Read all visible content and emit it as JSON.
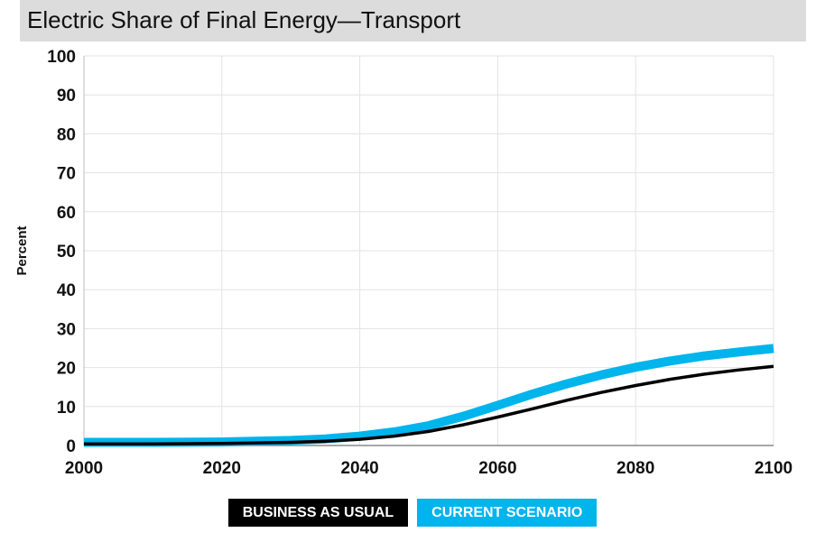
{
  "title": "Electric Share of Final Energy—Transport",
  "chart_data": {
    "type": "line",
    "ylabel": "Percent",
    "xlim": [
      2000,
      2100
    ],
    "ylim": [
      0,
      100
    ],
    "x_ticks": [
      2000,
      2020,
      2040,
      2060,
      2080,
      2100
    ],
    "y_ticks": [
      0,
      10,
      20,
      30,
      40,
      50,
      60,
      70,
      80,
      90,
      100
    ],
    "grid": true,
    "legend_placement": "bottom-center",
    "series": [
      {
        "name": "BUSINESS AS USUAL",
        "color": "#000000",
        "x": [
          2000,
          2010,
          2020,
          2030,
          2035,
          2040,
          2045,
          2050,
          2055,
          2060,
          2065,
          2070,
          2075,
          2080,
          2085,
          2090,
          2095,
          2100
        ],
        "values": [
          0.4,
          0.4,
          0.5,
          0.8,
          1.1,
          1.6,
          2.4,
          3.6,
          5.3,
          7.3,
          9.4,
          11.6,
          13.6,
          15.4,
          17.0,
          18.3,
          19.4,
          20.3
        ]
      },
      {
        "name": "CURRENT SCENARIO",
        "color": "#00b4ec",
        "x": [
          2000,
          2010,
          2020,
          2030,
          2035,
          2040,
          2045,
          2050,
          2055,
          2060,
          2065,
          2070,
          2075,
          2080,
          2085,
          2090,
          2095,
          2100
        ],
        "values": [
          0.8,
          0.8,
          0.9,
          1.3,
          1.7,
          2.4,
          3.5,
          5.1,
          7.5,
          10.3,
          13.2,
          15.8,
          18.1,
          20.1,
          21.7,
          23.0,
          24.0,
          24.9
        ]
      }
    ]
  }
}
